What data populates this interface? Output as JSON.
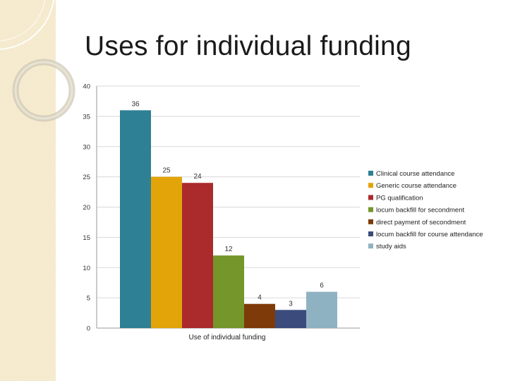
{
  "slide": {
    "title": "Uses for individual funding"
  },
  "chart_data": {
    "type": "bar",
    "categories": [
      "Clinical course attendance",
      "Generic course attendance",
      "PG qualification",
      "locum backfill for secondment",
      "direct payment of secondment",
      "locum backfill for course attendance",
      "study aids"
    ],
    "values": [
      36,
      25,
      24,
      12,
      4,
      3,
      6
    ],
    "colors": [
      "#2e8094",
      "#e2a408",
      "#ab2a2c",
      "#74962b",
      "#7e3a08",
      "#3b4c7c",
      "#8fb2c2"
    ],
    "xlabel": "Use of individual funding",
    "ylabel": "",
    "ylim": [
      0,
      40
    ],
    "yticks": [
      0,
      5,
      10,
      15,
      20,
      25,
      30,
      35,
      40
    ],
    "grid": true,
    "legend": "right"
  }
}
